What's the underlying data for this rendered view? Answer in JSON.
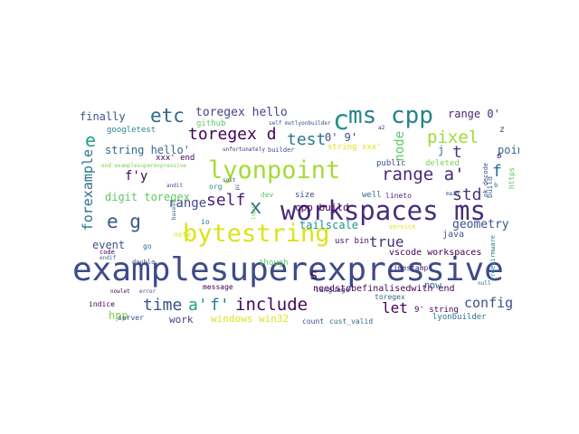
{
  "cloud": {
    "words": [
      {
        "text": "examplesuperexpressive",
        "color": "#3e4a89"
      },
      {
        "text": "workspaces ms",
        "color": "#472d7b"
      },
      {
        "text": "lyonpoint",
        "color": "#a5db36"
      },
      {
        "text": "bytestring",
        "color": "#dde318"
      },
      {
        "text": "ms cpp",
        "color": "#26828e"
      },
      {
        "text": "etc",
        "color": "#31688e"
      },
      {
        "text": "range a'",
        "color": "#482878"
      },
      {
        "text": "e g",
        "color": "#38588c"
      },
      {
        "text": "include",
        "color": "#46085c"
      },
      {
        "text": "pixel",
        "color": "#a0da39"
      },
      {
        "text": "time",
        "color": "#3b528b"
      },
      {
        "text": "a'",
        "color": "#1fa187"
      },
      {
        "text": "f'",
        "color": "#26828e"
      },
      {
        "text": "toregex d",
        "color": "#440154"
      },
      {
        "text": "test",
        "color": "#2a788e"
      },
      {
        "text": "self",
        "color": "#481f70"
      },
      {
        "text": "std",
        "color": "#46337f"
      },
      {
        "text": "t",
        "color": "#443a83"
      },
      {
        "text": "f",
        "color": "#2d708e"
      },
      {
        "text": "x",
        "color": "#31688e"
      },
      {
        "text": "c",
        "color": "#21918c"
      },
      {
        "text": "e",
        "color": "#1fa187"
      },
      {
        "text": "true",
        "color": "#46337f"
      },
      {
        "text": "let",
        "color": "#440154"
      },
      {
        "text": "config",
        "color": "#3b528b"
      },
      {
        "text": "forexample",
        "color": "#2d708e"
      },
      {
        "text": "range",
        "color": "#3e4a89"
      },
      {
        "text": "f'y",
        "color": "#440154"
      },
      {
        "text": "toregex hello",
        "color": "#414487"
      },
      {
        "text": "geometry",
        "color": "#3b528b"
      },
      {
        "text": "0' 9'",
        "color": "#3e4a89"
      },
      {
        "text": "range 0'",
        "color": "#482878"
      },
      {
        "text": "s",
        "color": "#46085c"
      },
      {
        "text": "node",
        "color": "#5ec962"
      },
      {
        "text": "point",
        "color": "#31688e"
      },
      {
        "text": "j",
        "color": "#2c728e"
      },
      {
        "text": "finally",
        "color": "#3b528b"
      },
      {
        "text": "string hello'",
        "color": "#31688e"
      },
      {
        "text": "digit toregex",
        "color": "#5ec962"
      },
      {
        "text": "event",
        "color": "#3b528b"
      },
      {
        "text": "cpp build",
        "color": "#440154"
      },
      {
        "text": "tailscale",
        "color": "#21918c"
      },
      {
        "text": "hpp",
        "color": "#7ad151"
      },
      {
        "text": "work",
        "color": "#433e85"
      },
      {
        "text": "windows win32",
        "color": "#dde318"
      },
      {
        "text": "row",
        "color": "#31688e"
      },
      {
        "text": "needstobefinalisedwith end",
        "color": "#440154"
      },
      {
        "text": "java",
        "color": "#3b528b"
      },
      {
        "text": "vscode workspaces",
        "color": "#440154"
      },
      {
        "text": "public",
        "color": "#3b528b"
      },
      {
        "text": "deleted",
        "color": "#7ad151"
      },
      {
        "text": "string xxx'",
        "color": "#dde318"
      },
      {
        "text": "github",
        "color": "#5ec962"
      },
      {
        "text": "googletest",
        "color": "#26828e"
      },
      {
        "text": "xxx' end",
        "color": "#440154"
      },
      {
        "text": "size",
        "color": "#3e4a89"
      },
      {
        "text": "well",
        "color": "#31688e"
      },
      {
        "text": "lineto",
        "color": "#472d7b"
      },
      {
        "text": "usr bin",
        "color": "#46085c"
      },
      {
        "text": "timestamp",
        "color": "#482878"
      },
      {
        "text": "9' string",
        "color": "#440154"
      },
      {
        "text": "lyonbuilder",
        "color": "#2c728e"
      },
      {
        "text": "toregex",
        "color": "#31688e"
      },
      {
        "text": "language",
        "color": "#482878"
      },
      {
        "text": "message",
        "color": "#440154"
      },
      {
        "text": "though",
        "color": "#5ec962"
      },
      {
        "text": "count",
        "color": "#3e4a89"
      },
      {
        "text": "cust_valid",
        "color": "#31688e"
      },
      {
        "text": "server",
        "color": "#3b528b"
      },
      {
        "text": "indice",
        "color": "#440154"
      },
      {
        "text": "note",
        "color": "#dde318"
      },
      {
        "text": "io",
        "color": "#2a788e"
      },
      {
        "text": "org",
        "color": "#21918c"
      },
      {
        "text": "go",
        "color": "#31688e"
      },
      {
        "text": "dev",
        "color": "#5ec962"
      },
      {
        "text": "builder",
        "color": "#3b528b"
      },
      {
        "text": "unfortunately",
        "color": "#482878"
      },
      {
        "text": "self mutlyonbuilder",
        "color": "#3e4a89"
      },
      {
        "text": "end examplesuperexpressive",
        "color": "#7ad151"
      },
      {
        "text": "andit",
        "color": "#3b528b"
      },
      {
        "text": "code",
        "color": "#440154"
      },
      {
        "text": "endif",
        "color": "#31688e"
      },
      {
        "text": "double",
        "color": "#3b528b"
      },
      {
        "text": "nowlet",
        "color": "#440154"
      },
      {
        "text": "error",
        "color": "#3e4a89"
      },
      {
        "text": "null",
        "color": "#31688e"
      },
      {
        "text": "service",
        "color": "#dde318"
      },
      {
        "text": "freefirmware",
        "color": "#26828e"
      },
      {
        "text": "https",
        "color": "#5ec962"
      },
      {
        "text": "build",
        "color": "#31688e"
      },
      {
        "text": "main",
        "color": "#3b528b"
      },
      {
        "text": "z",
        "color": "#3b528b"
      },
      {
        "text": "o",
        "color": "#440154"
      },
      {
        "text": "soit",
        "color": "#3e4a89"
      },
      {
        "text": "input",
        "color": "#7ad151"
      },
      {
        "text": "based",
        "color": "#31688e"
      },
      {
        "text": "pc",
        "color": "#3b528b"
      },
      {
        "text": "a2",
        "color": "#482878"
      },
      {
        "text": "ok decode",
        "color": "#3e4a89"
      },
      {
        "text": "b",
        "color": "#31688e"
      }
    ]
  }
}
